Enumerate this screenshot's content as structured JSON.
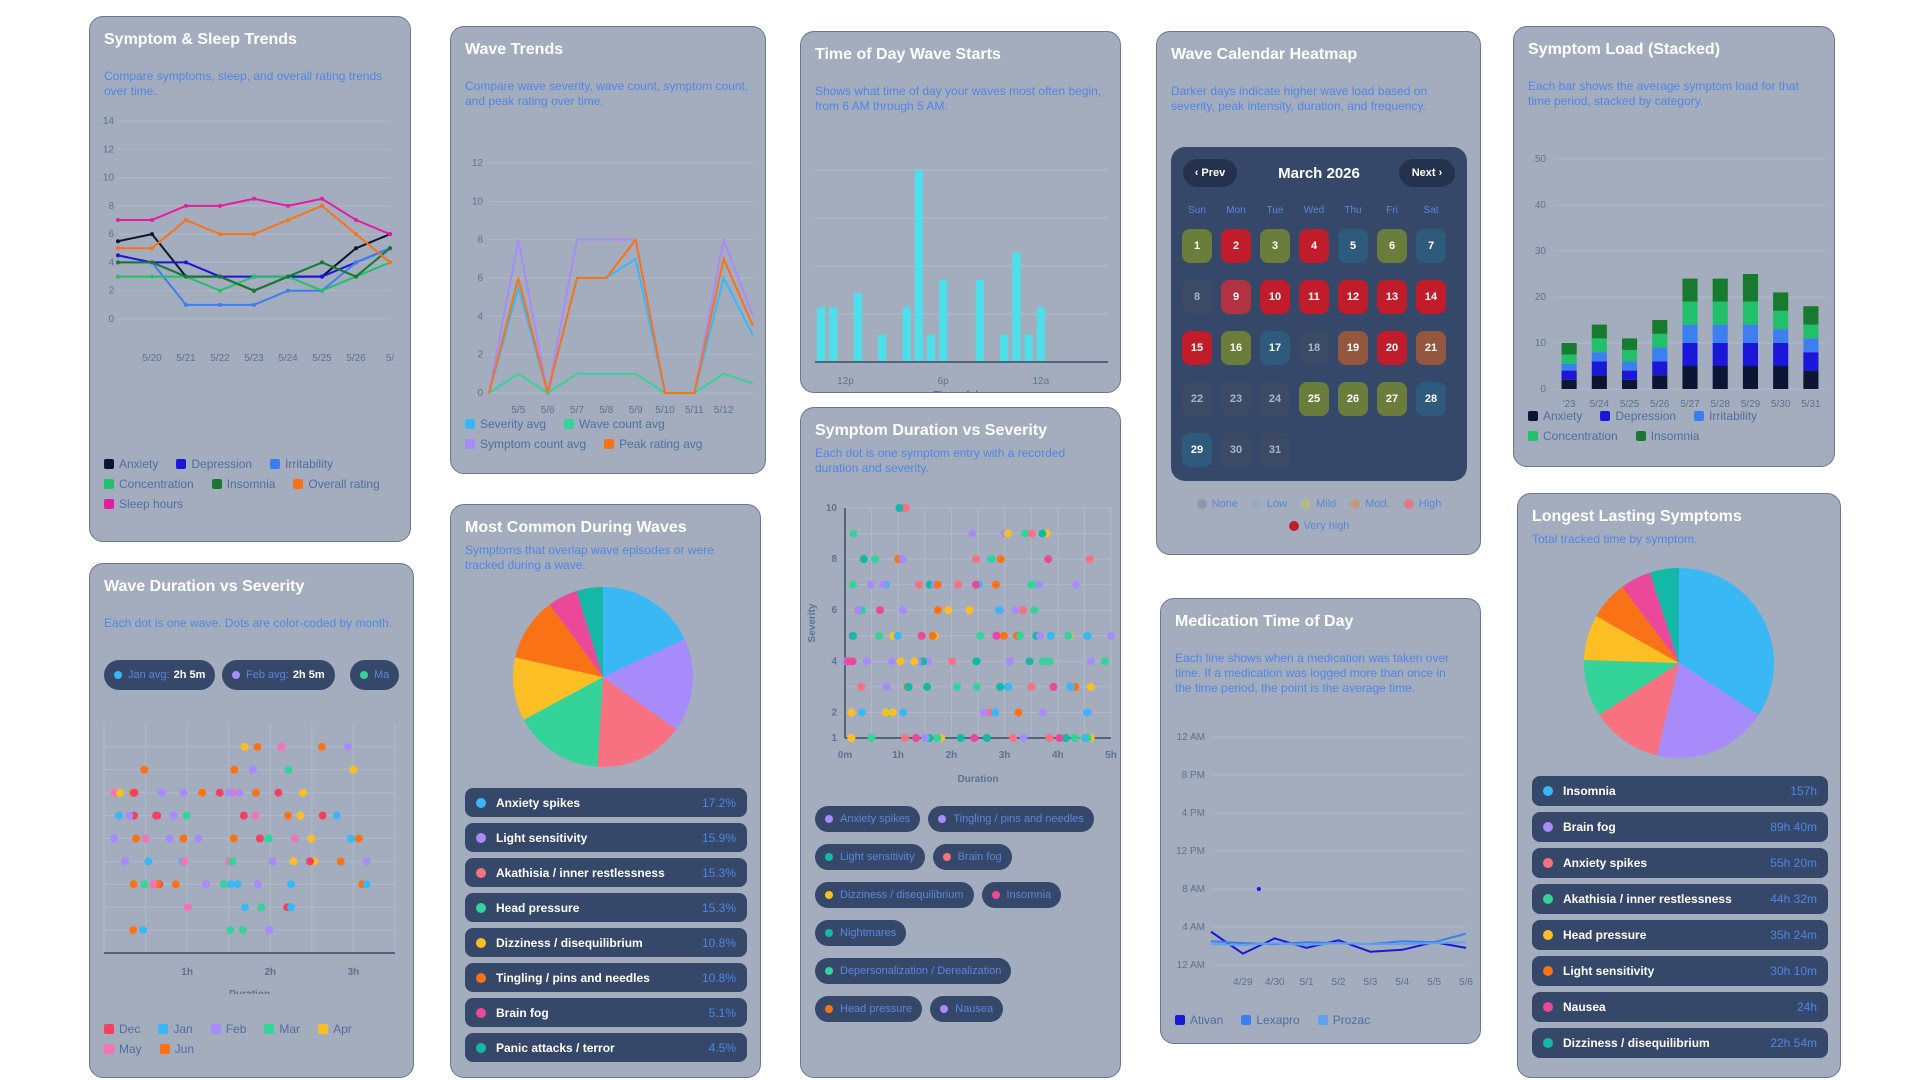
{
  "colors": {
    "card_bg": "#a3adbe",
    "panel": "#36486a",
    "accent": "#4f86e3"
  },
  "card1": {
    "title": "Symptom & Sleep Trends",
    "subtitle": "Compare symptoms, sleep, and overall rating trends over time.",
    "legend": [
      {
        "label": "Anxiety",
        "color": "#0c1533"
      },
      {
        "label": "Depression",
        "color": "#1b17d8"
      },
      {
        "label": "Irritability",
        "color": "#3c7ff0"
      },
      {
        "label": "Concentration",
        "color": "#22c06b"
      },
      {
        "label": "Insomnia",
        "color": "#177a2e"
      },
      {
        "label": "Overall rating",
        "color": "#f97316"
      },
      {
        "label": "Sleep hours",
        "color": "#e51ca0"
      }
    ],
    "chart_data": {
      "type": "line",
      "x": [
        "5/19",
        "5/20",
        "5/21",
        "5/22",
        "5/23",
        "5/24",
        "5/25",
        "5/26",
        "5/27"
      ],
      "tick_labels": [
        "5/20",
        "5/21",
        "5/22",
        "5/23",
        "5/24",
        "5/25",
        "5/26",
        "5/"
      ],
      "ylim": [
        0,
        14
      ],
      "yticks": [
        0,
        2,
        4,
        6,
        8,
        10,
        12,
        14
      ],
      "series": [
        {
          "name": "Anxiety",
          "color": "#0c1533",
          "values": [
            5.5,
            6,
            3,
            3,
            2,
            3,
            3,
            5,
            6
          ]
        },
        {
          "name": "Depression",
          "color": "#1b17d8",
          "values": [
            4.5,
            4,
            4,
            3,
            3,
            3,
            3,
            4,
            5
          ]
        },
        {
          "name": "Irritability",
          "color": "#3c7ff0",
          "values": [
            4,
            4,
            1,
            1,
            1,
            2,
            2,
            4,
            5
          ]
        },
        {
          "name": "Concentration",
          "color": "#22c06b",
          "values": [
            3,
            3,
            3,
            2,
            3,
            3,
            2,
            3,
            4
          ]
        },
        {
          "name": "Insomnia",
          "color": "#177a2e",
          "values": [
            4,
            4,
            3,
            3,
            2,
            3,
            4,
            3,
            5
          ]
        },
        {
          "name": "Overall rating",
          "color": "#f97316",
          "values": [
            5,
            5,
            7,
            6,
            6,
            7,
            8,
            6,
            4
          ]
        },
        {
          "name": "Sleep hours",
          "color": "#e51ca0",
          "values": [
            7,
            7,
            8,
            8,
            8.5,
            8,
            8.5,
            7,
            6
          ]
        }
      ]
    }
  },
  "card2": {
    "title": "Wave Trends",
    "subtitle": "Compare wave severity, wave count, symptom count, and peak rating over time.",
    "legend": [
      {
        "label": "Severity avg",
        "color": "#3ab7f5"
      },
      {
        "label": "Wave count avg",
        "color": "#34d399"
      },
      {
        "label": "Symptom count avg",
        "color": "#a78bfa"
      },
      {
        "label": "Peak rating avg",
        "color": "#f97316"
      }
    ],
    "chart_data": {
      "type": "line",
      "x": [
        "5/4",
        "5/5",
        "5/6",
        "5/7",
        "5/8",
        "5/9",
        "5/10",
        "5/11",
        "5/12",
        "5/13"
      ],
      "tick_labels": [
        "5/5",
        "5/6",
        "5/7",
        "5/8",
        "5/9",
        "5/10",
        "5/11",
        "5/12"
      ],
      "ylim": [
        0,
        12
      ],
      "yticks": [
        0,
        2,
        4,
        6,
        8,
        10,
        12
      ],
      "series": [
        {
          "name": "Severity avg",
          "color": "#3ab7f5",
          "values": [
            0,
            5.5,
            0,
            6,
            6,
            7,
            0,
            0,
            6,
            3
          ]
        },
        {
          "name": "Wave count avg",
          "color": "#34d399",
          "values": [
            0,
            1,
            0,
            1,
            1,
            1,
            0,
            0,
            1,
            0.5
          ]
        },
        {
          "name": "Symptom count avg",
          "color": "#a78bfa",
          "values": [
            0,
            8,
            0,
            8,
            8,
            8,
            0,
            0,
            8,
            4
          ]
        },
        {
          "name": "Peak rating avg",
          "color": "#f97316",
          "values": [
            0,
            6,
            0,
            6,
            6,
            8,
            0,
            0,
            7,
            3.5
          ]
        }
      ]
    }
  },
  "card3": {
    "title": "Time of Day Wave Starts",
    "subtitle": "Shows what time of day your waves most often begin, from 6 AM through 5 AM.",
    "xlabel": "Time of day",
    "chart_data": {
      "type": "bar",
      "categories": [
        "6a",
        "7a",
        "8a",
        "9a",
        "10a",
        "11a",
        "12p",
        "1p",
        "2p",
        "3p",
        "4p",
        "5p",
        "6p",
        "7p",
        "8p",
        "9p",
        "10p",
        "11p",
        "12a",
        "1a",
        "2a",
        "3a",
        "4a",
        "5a"
      ],
      "tick_labels": [
        {
          "index": 2,
          "label": "12p"
        },
        {
          "index": 10,
          "label": "6p"
        },
        {
          "index": 18,
          "label": "12a"
        }
      ],
      "values": [
        4,
        4,
        0,
        5,
        0,
        2,
        0,
        4,
        14,
        2,
        6,
        0,
        0,
        6,
        0,
        2,
        8,
        2,
        4,
        0,
        0,
        0,
        0,
        0
      ],
      "color": "#4ee0ea"
    }
  },
  "card4": {
    "title": "Wave Calendar Heatmap",
    "subtitle": "Darker days indicate higher wave load based on severity, peak intensity, duration, and frequency.",
    "prev_label": "‹ Prev",
    "next_label": "Next ›",
    "month_label": "March 2026",
    "weekdays": [
      "Sun",
      "Mon",
      "Tue",
      "Wed",
      "Thu",
      "Fri",
      "Sat"
    ],
    "level_colors": {
      "none": "#3d4a66",
      "low": "#2e5a7c",
      "mild": "#6b7d3a",
      "mod": "#93573f",
      "high": "#b33241",
      "very_high": "#c01c2a"
    },
    "days": [
      {
        "d": "1",
        "l": "mild"
      },
      {
        "d": "2",
        "l": "very_high"
      },
      {
        "d": "3",
        "l": "mild"
      },
      {
        "d": "4",
        "l": "very_high"
      },
      {
        "d": "5",
        "l": "low"
      },
      {
        "d": "6",
        "l": "mild"
      },
      {
        "d": "7",
        "l": "low"
      },
      {
        "d": "8",
        "l": "none"
      },
      {
        "d": "9",
        "l": "high"
      },
      {
        "d": "10",
        "l": "very_high"
      },
      {
        "d": "11",
        "l": "very_high"
      },
      {
        "d": "12",
        "l": "very_high"
      },
      {
        "d": "13",
        "l": "very_high"
      },
      {
        "d": "14",
        "l": "very_high"
      },
      {
        "d": "15",
        "l": "very_high"
      },
      {
        "d": "16",
        "l": "mild"
      },
      {
        "d": "17",
        "l": "low"
      },
      {
        "d": "18",
        "l": "none"
      },
      {
        "d": "19",
        "l": "mod"
      },
      {
        "d": "20",
        "l": "very_high"
      },
      {
        "d": "21",
        "l": "mod"
      },
      {
        "d": "22",
        "l": "none"
      },
      {
        "d": "23",
        "l": "none"
      },
      {
        "d": "24",
        "l": "none"
      },
      {
        "d": "25",
        "l": "mild"
      },
      {
        "d": "26",
        "l": "mild"
      },
      {
        "d": "27",
        "l": "mild"
      },
      {
        "d": "28",
        "l": "low"
      },
      {
        "d": "29",
        "l": "low"
      },
      {
        "d": "30",
        "l": "none"
      },
      {
        "d": "31",
        "l": "none"
      }
    ],
    "legend": [
      {
        "label": "None",
        "color": "#8c97ab"
      },
      {
        "label": "Low",
        "color": "#9aaac0"
      },
      {
        "label": "Mild",
        "color": "#b3b98a"
      },
      {
        "label": "Mod.",
        "color": "#c49a85"
      },
      {
        "label": "High",
        "color": "#e07a86"
      },
      {
        "label": "Very high",
        "color": "#c01c2a"
      }
    ]
  },
  "card5": {
    "title": "Symptom Load (Stacked)",
    "subtitle": "Each bar shows the average symptom load for that time period, stacked by category.",
    "legend": [
      {
        "label": "Anxiety",
        "color": "#0c1533"
      },
      {
        "label": "Depression",
        "color": "#1b17d8"
      },
      {
        "label": "Irritability",
        "color": "#3c7ff0"
      },
      {
        "label": "Concentration",
        "color": "#22c06b"
      },
      {
        "label": "Insomnia",
        "color": "#177a2e"
      }
    ],
    "chart_data": {
      "type": "bar",
      "stacked": true,
      "categories": [
        "'23",
        "5/24",
        "5/25",
        "5/26",
        "5/27",
        "5/28",
        "5/29",
        "5/30",
        "5/31"
      ],
      "ylim": [
        0,
        50
      ],
      "yticks": [
        0,
        10,
        20,
        30,
        40,
        50
      ],
      "series": [
        {
          "name": "Anxiety",
          "values": [
            2,
            3,
            2,
            3,
            5,
            5,
            5,
            5,
            4
          ]
        },
        {
          "name": "Depression",
          "values": [
            2,
            3,
            2,
            3,
            5,
            5,
            5,
            5,
            4
          ]
        },
        {
          "name": "Irritability",
          "values": [
            1.5,
            2,
            2,
            3,
            4,
            4,
            4,
            3,
            3
          ]
        },
        {
          "name": "Concentration",
          "values": [
            2,
            3,
            2.5,
            3,
            5,
            5,
            5,
            4,
            3
          ]
        },
        {
          "name": "Insomnia",
          "values": [
            2.5,
            3,
            2.5,
            3,
            5,
            5,
            6,
            4,
            4
          ]
        }
      ]
    }
  },
  "card6": {
    "title": "Wave Duration vs Severity",
    "subtitle": "Each dot is one wave. Dots are color-coded by month.",
    "avgs": [
      {
        "label": "Jan avg:",
        "value": "2h 5m",
        "color": "#3ab7f5"
      },
      {
        "label": "Feb avg:",
        "value": "2h 5m",
        "color": "#a78bfa"
      },
      {
        "label": "Ma",
        "value": "",
        "color": "#34d399"
      }
    ],
    "xlabel": "Duration",
    "xticks": [
      "1h",
      "2h",
      "3h"
    ],
    "legend": [
      {
        "label": "Dec",
        "color": "#f43f5e"
      },
      {
        "label": "Jan",
        "color": "#3ab7f5"
      },
      {
        "label": "Feb",
        "color": "#a78bfa"
      },
      {
        "label": "Mar",
        "color": "#34d399"
      },
      {
        "label": "Apr",
        "color": "#fbbf24"
      },
      {
        "label": "May",
        "color": "#f472b6"
      },
      {
        "label": "Jun",
        "color": "#f97316"
      }
    ],
    "chart_data": {
      "type": "scatter",
      "xlim": [
        0,
        3.5
      ],
      "ylim": [
        0,
        10
      ],
      "note": "dots per month, severity 1-9"
    }
  },
  "card7": {
    "title": "Most Common During Waves",
    "subtitle": "Symptoms that overlap wave episodes or were tracked during a wave.",
    "items": [
      {
        "label": "Anxiety spikes",
        "value": "17.2%",
        "pct": 17.2,
        "color": "#3ab7f5"
      },
      {
        "label": "Light sensitivity",
        "value": "15.9%",
        "pct": 15.9,
        "color": "#a78bfa"
      },
      {
        "label": "Akathisia / inner restlessness",
        "value": "15.3%",
        "pct": 15.3,
        "color": "#f87181"
      },
      {
        "label": "Head pressure",
        "value": "15.3%",
        "pct": 15.3,
        "color": "#34d399"
      },
      {
        "label": "Dizziness / disequilibrium",
        "value": "10.8%",
        "pct": 10.8,
        "color": "#fbbf24"
      },
      {
        "label": "Tingling / pins and needles",
        "value": "10.8%",
        "pct": 10.8,
        "color": "#f97316"
      },
      {
        "label": "Brain fog",
        "value": "5.1%",
        "pct": 5.1,
        "color": "#ec4899"
      },
      {
        "label": "Panic attacks / terror",
        "value": "4.5%",
        "pct": 4.5,
        "color": "#14b8a6"
      }
    ]
  },
  "card8": {
    "title": "Symptom Duration vs Severity",
    "subtitle": "Each dot is one symptom entry with a recorded duration and severity.",
    "ylabel": "Severity",
    "xlabel": "Duration",
    "xticks": [
      "0m",
      "1h",
      "2h",
      "3h",
      "4h",
      "5h"
    ],
    "yticks": [
      "1",
      "2",
      "4",
      "6",
      "8",
      "10"
    ],
    "chips": [
      {
        "label": "Anxiety spikes",
        "color": "#a78bfa"
      },
      {
        "label": "Tingling / pins and needles",
        "color": "#a78bfa"
      },
      {
        "label": "Light sensitivity",
        "color": "#14b8a6"
      },
      {
        "label": "Brain fog",
        "color": "#f87181"
      },
      {
        "label": "Dizziness / disequilibrium",
        "color": "#fbbf24"
      },
      {
        "label": "Insomnia",
        "color": "#ec4899"
      },
      {
        "label": "Nightmares",
        "color": "#14b8a6"
      },
      {
        "label": "Depersonalization / Derealization",
        "color": "#34d399"
      },
      {
        "label": "Head pressure",
        "color": "#f97316"
      },
      {
        "label": "Nausea",
        "color": "#a78bfa"
      }
    ],
    "chart_data": {
      "type": "scatter",
      "xlim": [
        0,
        5
      ],
      "ylim": [
        1,
        10
      ]
    }
  },
  "card9": {
    "title": "Medication Time of Day",
    "subtitle": "Each line shows when a medication was taken over time. If a medication was logged more than once in the time period, the point is the average time.",
    "yticks": [
      "12 AM",
      "8 PM",
      "4 PM",
      "12 PM",
      "8 AM",
      "4 AM",
      "12 AM"
    ],
    "xticks": [
      "4/29",
      "4/30",
      "5/1",
      "5/2",
      "5/3",
      "5/4",
      "5/5",
      "5/6"
    ],
    "legend": [
      {
        "label": "Ativan",
        "color": "#1b17d8"
      },
      {
        "label": "Lexapro",
        "color": "#3c7ff0"
      },
      {
        "label": "Prozac",
        "color": "#5ea0f2"
      }
    ],
    "chart_data": {
      "type": "line",
      "x": [
        "4/28",
        "4/29",
        "4/30",
        "5/1",
        "5/2",
        "5/3",
        "5/4",
        "5/5",
        "5/6"
      ],
      "series": [
        {
          "name": "Ativan",
          "values": [
            3.5,
            1.2,
            2.8,
            1.8,
            2.6,
            1.4,
            1.6,
            2.4,
            1.8
          ]
        },
        {
          "name": "Lexapro",
          "values": [
            2.5,
            2.3,
            2.2,
            2.4,
            2.3,
            2.2,
            2.5,
            2.4,
            3.3
          ]
        },
        {
          "name": "Prozac",
          "values": [
            2.2,
            2.1,
            2.3,
            2.1,
            2.3,
            2.2,
            2.2,
            2.3,
            2.4
          ]
        }
      ],
      "ylim": [
        0,
        24
      ]
    }
  },
  "card10": {
    "title": "Longest Lasting Symptoms",
    "subtitle": "Total tracked time by symptom.",
    "items": [
      {
        "label": "Insomnia",
        "value": "157h",
        "mins": 9420,
        "color": "#3ab7f5"
      },
      {
        "label": "Brain fog",
        "value": "89h 40m",
        "mins": 5380,
        "color": "#a78bfa"
      },
      {
        "label": "Anxiety spikes",
        "value": "55h 20m",
        "mins": 3320,
        "color": "#f87181"
      },
      {
        "label": "Akathisia / inner restlessness",
        "value": "44h 32m",
        "mins": 2672,
        "color": "#34d399"
      },
      {
        "label": "Head pressure",
        "value": "35h 24m",
        "mins": 2124,
        "color": "#fbbf24"
      },
      {
        "label": "Light sensitivity",
        "value": "30h 10m",
        "mins": 1810,
        "color": "#f97316"
      },
      {
        "label": "Nausea",
        "value": "24h",
        "mins": 1440,
        "color": "#ec4899"
      },
      {
        "label": "Dizziness / disequilibrium",
        "value": "22h 54m",
        "mins": 1374,
        "color": "#14b8a6"
      }
    ]
  }
}
